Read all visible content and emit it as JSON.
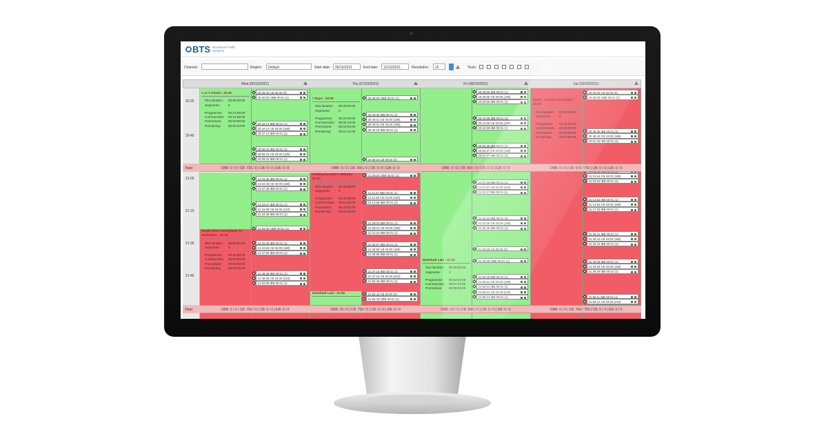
{
  "app": {
    "logo": "BTS",
    "logo_subtitle": "Broadcast Traffic Systems"
  },
  "toolbar": {
    "channel_label": "Channel:",
    "region_label": "Region:",
    "region": "Default",
    "start_label": "Start date:",
    "start": "06/10/2021",
    "end_label": "End date:",
    "end": "12/10/2021",
    "resolution_label": "Resolution:",
    "resolution": "15",
    "tools_label": "Tools:"
  },
  "grid": {
    "times": [
      "20:30",
      "20:45",
      "21:00",
      "21:15",
      "21:30",
      "21:45"
    ],
    "total_label": "Total:",
    "days": [
      {
        "label": "Wed (06/10/2021)",
        "totals": [
          "OBB: 0 / 0 | CB: 735 / 0 | CB: 0 / 0 | EB: 0 / 0",
          "OBB: 0 / 0 | CB: 750 / 0 | CB: 0 / 0 | EB: 0 / 0"
        ],
        "programs": [
          {
            "title": "L.A.'s Finest - 20:30",
            "fields": [
              [
                "Slot duration:",
                "00:55:00:00"
              ],
              [
                "Segments:",
                "5"
              ],
              [
                "Programme:",
                "00:41:59:00"
              ],
              [
                "Commercials:",
                "00:12:38:00"
              ],
              [
                "Promotions:",
                "00:00:00:00"
              ],
              [
                "Remaining:",
                "00:00:23:00"
              ]
            ]
          },
          {
            "title": "Death Row: Countdown To Execution - 21:25",
            "fields": [
              [
                "Slot duration:",
                "00:55:00:00"
              ],
              [
                "Segments:",
                "5"
              ],
              [
                "Programme:",
                "00:40:00:00"
              ],
              [
                "Commercials:",
                "00:00:00:00"
              ],
              [
                "Promotions:",
                "00:00:00:00"
              ],
              [
                "Remaining:",
                "00:03:46:00"
              ]
            ]
          }
        ],
        "breaks": [
          [
            "20:29:00 CB 00:30 (0)",
            "20:30:00 OBB 00:01 (1)"
          ],
          [
            "20:44:12 IBB 00:01 (1)",
            "20:44:13 CB 03:00 (180)",
            "20:47:13 IBB 00:01 (1)"
          ],
          [
            "20:58:33 IBB 00:01 (1)",
            "20:58:34 CB 03:00 (180)",
            "20:59:34 IBB 00:01 (1)"
          ],
          [
            "21:04:35 IBB 00:01 (1)",
            "21:04:36 CB 03:00 (180)",
            "21:07:36 IBB 00:01 (1)"
          ],
          [
            "21:16:07 IBB 00:01 (1)",
            "21:16:08 CB 03:30 (210)",
            "21:19:38 IBB 00:01 (1)"
          ],
          [
            "21:25:00 OBB 00:01 (1)"
          ],
          [
            "21:34:49 IBB 00:01 (1)",
            "21:34:50 CB 03:00 (180)",
            "21:37:50 IBB 00:01 (1)"
          ],
          [
            "21:48:38 IBB 00:01 (1)",
            "21:48:39 CB 03:30 (210)",
            "21:52:09 IBB 00:01 (1)"
          ]
        ]
      },
      {
        "label": "Thu (07/10/2021)",
        "totals": [
          "OBB: 0 / 0 | CB: 265 / 0 | CB: 0 / 0 | EB: 0 / 0",
          "OBB: 10 / 0 | CB: 750 / 0 | CB: 0 / 0 | EB: 0 / 0"
        ],
        "programs": [
          {
            "title": "7 Days - 20:30",
            "fields": [
              [
                "Slot duration:",
                "00:30:00:00"
              ],
              [
                "Segments:",
                "3"
              ],
              [
                "Programme:",
                "00:22:00:00"
              ],
              [
                "Commercials:",
                "00:06:19:00"
              ],
              [
                "Promotions:",
                "00:00:00:00"
              ],
              [
                "Remaining:",
                "00:01:41:00"
              ]
            ]
          },
          {
            "title": "Finding Escobar's Millions - 21:00",
            "fields": [
              [
                "Slot duration:",
                "00:55:00:00"
              ],
              [
                "Segments:",
                "3"
              ],
              [
                "Programme:",
                "00:40:00:00"
              ],
              [
                "Commercials:",
                "00:13:00:00"
              ],
              [
                "Promotions:",
                "00:00:00:00"
              ],
              [
                "Remaining:",
                "00:00:43:00"
              ]
            ]
          },
          {
            "title": "Newshub Late - 21:55",
            "fields": []
          }
        ],
        "breaks": [
          [
            "20:30:00 OBB 00:01 (1)"
          ],
          [
            "20:40:00 IBB 00:01 (1)",
            "20:40:01 CB 03:00 (180)",
            "20:40:01 CB 03:15 (195)",
            "20:40:16 IBB 00:01 (1)"
          ],
          [
            "20:58:16 CB 00:00 (0)"
          ],
          [
            "21:00:00 OBB 00:01 (1)"
          ],
          [
            "21:11:57 IBB 00:01 (1)",
            "21:11:58 CB 03:00 (180)",
            "21:14:58 IBB 00:01 (1)"
          ],
          [
            "21:28:03 IBB 00:01 (1)",
            "21:28:04 CB 03:00 (180)",
            "21:31:04 IBB 00:01 (1)"
          ],
          [
            "21:35:57 IBB 00:01 (1)",
            "21:35:58 CB 03:00 (180)",
            "21:38:58 IBB 00:01 (1)"
          ],
          [
            "21:47:15 IBB 00:01 (1)",
            "21:47:16 CB 03:30 (210)",
            "21:50:46 IBB 00:01 (1)"
          ],
          [
            "21:55:43 CB 00:00 (0)",
            "21:55:43 OBB 00:01 (1)"
          ]
        ]
      },
      {
        "label": "Fri (08/10/2021)",
        "totals": [
          "OBB: 0 / 0 | CB: 900 / 0 | CB: 0 / 0 | EB: 0 / 0",
          "OBB: 10 / 0 | CB: 840 / 0 | CB: 0 / 0 | EB: 0 / 0"
        ],
        "programs": [
          {
            "title": "Newshub Late - 21:40",
            "fields": [
              [
                "Slot duration:",
                "00:30:00:00"
              ],
              [
                "Segments:",
                "3"
              ],
              [
                "Programme:",
                "00:22:00:00"
              ],
              [
                "Commercials:",
                "00:07:24:00"
              ],
              [
                "Promotions:",
                "00:00:00:00"
              ]
            ]
          }
        ],
        "breaks": [
          [
            "20:29:55 IBB 00:01 (1)",
            "20:29:56 CB 03:00 (180)",
            "20:32:56 IBB 00:01 (1)"
          ],
          [
            "20:41:58 IBB 00:01 (1)",
            "20:41:59 CB 03:00 (180)",
            "20:44:59 IBB 00:01 (1)"
          ],
          [
            "20:54:36 IBB 00:01 (1)",
            "20:54:37 CB 03:00 (180)",
            "20:57:37 IBB 00:01 (1)"
          ],
          [
            "21:07:56 IBB 00:01 (1)",
            "21:07:57 CB 03:30 (210)",
            "21:11:27 IBB 00:01 (1)"
          ],
          [
            "21:23:34 IBB 00:01 (1)",
            "21:23:35 CB 03:00 (180)",
            "21:26:35 IBB 00:01 (1)"
          ],
          [
            "21:35:08 CB 00:00 (0)"
          ],
          [
            "21:40:00 OBB 00:01 (1)"
          ],
          [
            "21:50:00 IBB 00:01 (1)",
            "21:50:01 CB 03:00 (180)",
            "21:53:01 IBB 00:01 (1)",
            "21:55:01 CB 03:30 (210)",
            "21:58:31 IBB 00:01 (1)"
          ]
        ]
      },
      {
        "label": "Sat (09/10/2021)",
        "totals": [
          "OBB: 0 / 0 | CB: 570 / 750 | CB: 0 / 0 | EB: 0 / 0",
          "OBB: 0 / 0 | CB: 768 / 750 | CB: 0 / 0 | EB: 0 / 0"
        ],
        "programs": [
          {
            "title": "Moon - Victoria And Abdul - 20:30",
            "fields": [
              [
                "Slot duration:",
                "02:00:00:00"
              ],
              [
                "Segments:",
                "6"
              ],
              [
                "Programme:",
                "01:40:00:00"
              ],
              [
                "Commercials:",
                "00:16:00:00"
              ],
              [
                "Promotions:",
                "00:00:00:00"
              ],
              [
                "Remaining:",
                "00:03:58:00"
              ]
            ]
          }
        ],
        "breaks": [
          [
            "20:29:59 CB 00:00 (0)",
            "20:30:00 OBB 00:01 (1)"
          ],
          [
            "20:48:39 IBB 00:01 (1)",
            "20:48:40 CB 03:00 (180)",
            "20:51:40 IBB 00:01 (1)"
          ],
          [
            "21:01:53 IBB 00:01 (1)",
            "21:01:54 CB 03:00 (180)",
            "21:04:54 IBB 00:01 (1)"
          ],
          [
            "21:14:52 IBB 00:01 (1)",
            "21:14:53 CB 03:00 (180)",
            "21:17:53 IBB 00:01 (1)"
          ],
          [
            "21:30:41 IBB 00:01 (1)",
            "21:30:42 CB 03:00 (180)",
            "21:33:42 IBB 00:01 (1)"
          ],
          [
            "21:43:28 IBB 00:01 (1)",
            "21:43:29 CB 03:00 (180)",
            "21:46:29 IBB 00:01 (1)"
          ],
          [
            "21:59:11 IBB 00:01 (1)",
            "21:59:12 CB 03:30 (210)",
            "22:02:42 IBB 00:01 (1)"
          ]
        ]
      }
    ]
  }
}
